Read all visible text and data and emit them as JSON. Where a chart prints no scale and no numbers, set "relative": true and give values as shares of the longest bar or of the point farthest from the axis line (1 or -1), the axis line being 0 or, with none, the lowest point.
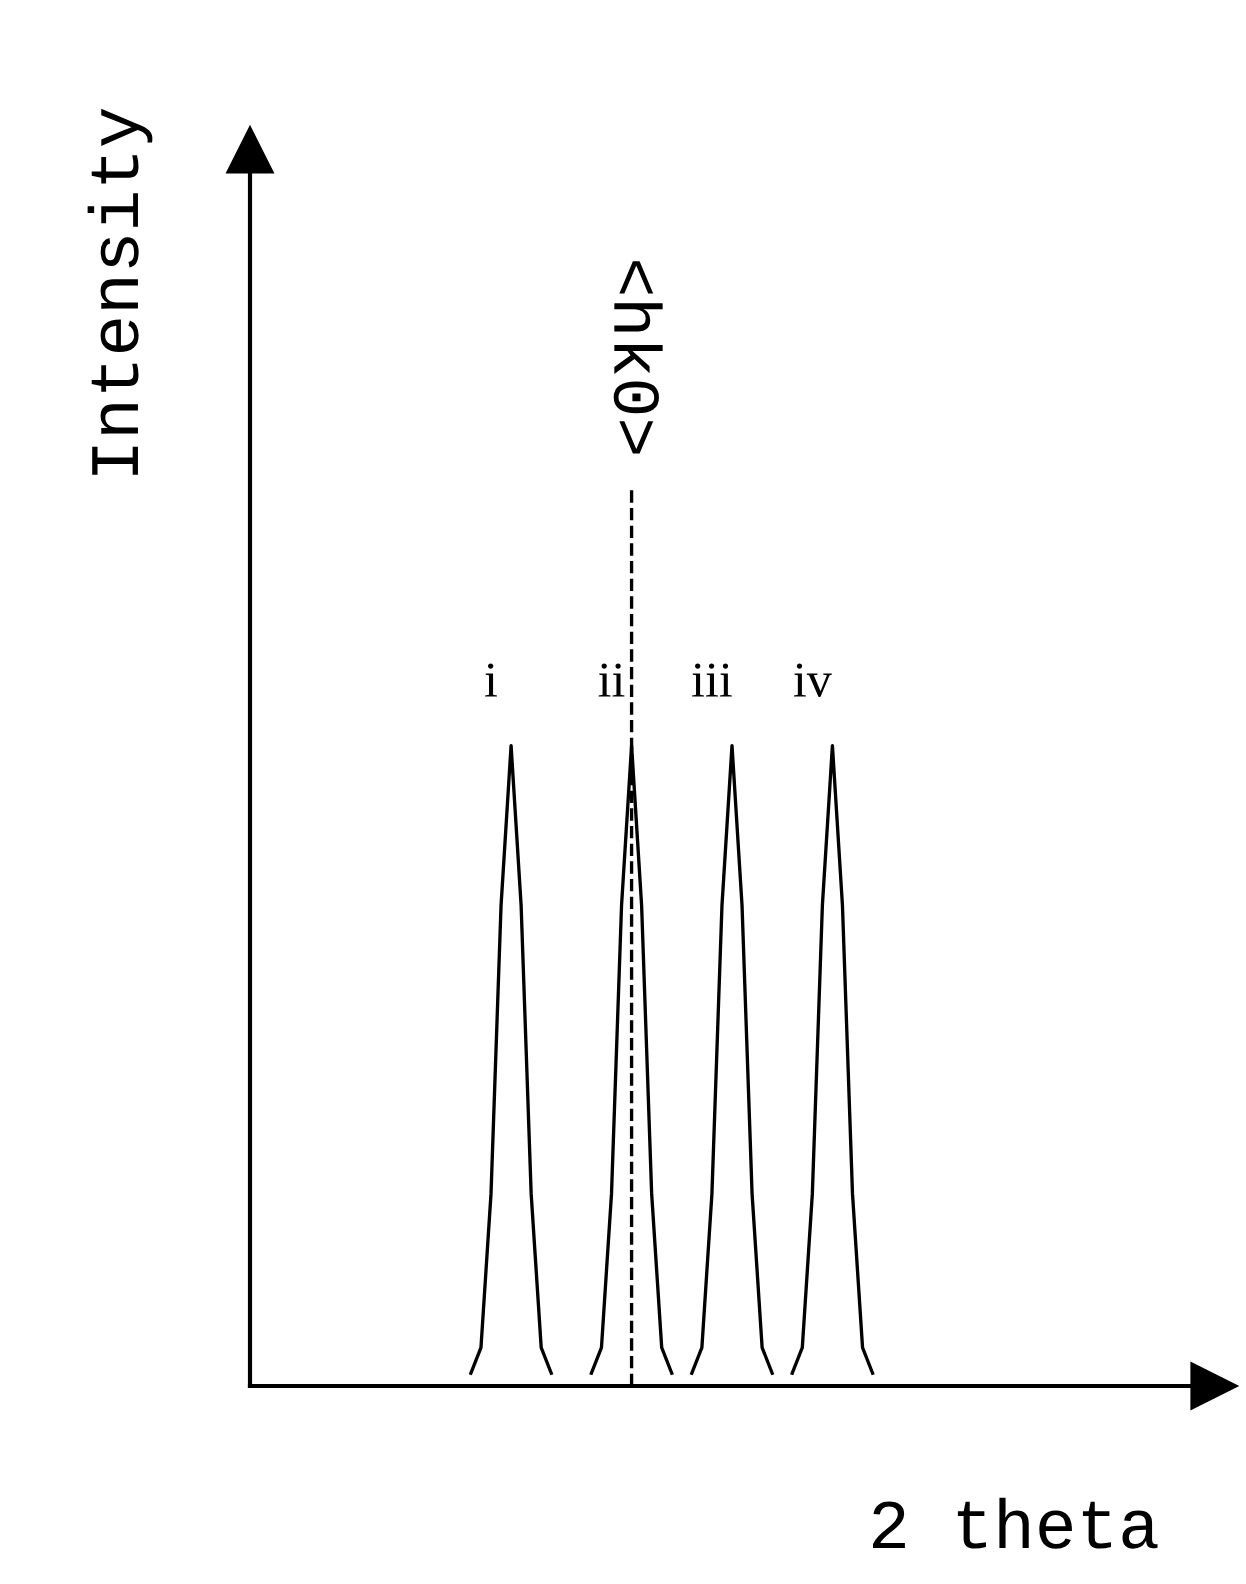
{
  "chart_data": {
    "type": "line",
    "relative": true,
    "xlabel": "2 theta",
    "ylabel": "Intensity",
    "categories": [
      null,
      null,
      null,
      null,
      null,
      null,
      null,
      null,
      null,
      null,
      null,
      null,
      null,
      null,
      null,
      null,
      null,
      null,
      null,
      null,
      null,
      null,
      null,
      null,
      null,
      null,
      null,
      null,
      null,
      null,
      null,
      null,
      null,
      null,
      null,
      null,
      null,
      null,
      null,
      null,
      null,
      null,
      null,
      null,
      null,
      null,
      null,
      null,
      null,
      null,
      null,
      null,
      null,
      null,
      null,
      null,
      null,
      null,
      null,
      null,
      null,
      null,
      null,
      null,
      null,
      null,
      null,
      null,
      null,
      null,
      null,
      null,
      null,
      null,
      null,
      null,
      null,
      null,
      null,
      null,
      null,
      null,
      null,
      null,
      null,
      null,
      null,
      null,
      null,
      null,
      null,
      null,
      null,
      null,
      null,
      null,
      null
    ],
    "series": [
      {
        "name": "i",
        "color": "#000000",
        "values": [
          null,
          null,
          null,
          null,
          null,
          null,
          null,
          null,
          null,
          null,
          null,
          null,
          null,
          null,
          null,
          null,
          null,
          null,
          null,
          null,
          null,
          null,
          0.02,
          0.06,
          0.3,
          0.75,
          1,
          0.75,
          0.3,
          0.06,
          0.02,
          null,
          null,
          null,
          null,
          null,
          null,
          null,
          null,
          null,
          null,
          null,
          null,
          null,
          null,
          null,
          null,
          null,
          null,
          null,
          null,
          null,
          null,
          null,
          null,
          null,
          null,
          null,
          null,
          null,
          null,
          null,
          null,
          null,
          null,
          null,
          null,
          null,
          null,
          null,
          null,
          null,
          null,
          null,
          null,
          null,
          null,
          null,
          null,
          null,
          null,
          null,
          null,
          null,
          null,
          null,
          null,
          null,
          null,
          null,
          null,
          null,
          null,
          null,
          null,
          null,
          null
        ]
      },
      {
        "name": "ii",
        "color": "#000000",
        "values": [
          null,
          null,
          null,
          null,
          null,
          null,
          null,
          null,
          null,
          null,
          null,
          null,
          null,
          null,
          null,
          null,
          null,
          null,
          null,
          null,
          null,
          null,
          null,
          null,
          null,
          null,
          null,
          null,
          null,
          null,
          null,
          null,
          null,
          null,
          0.02,
          0.06,
          0.3,
          0.75,
          1,
          0.75,
          0.3,
          0.06,
          0.02,
          null,
          null,
          null,
          null,
          null,
          null,
          null,
          null,
          null,
          null,
          null,
          null,
          null,
          null,
          null,
          null,
          null,
          null,
          null,
          null,
          null,
          null,
          null,
          null,
          null,
          null,
          null,
          null,
          null,
          null,
          null,
          null,
          null,
          null,
          null,
          null,
          null,
          null,
          null,
          null,
          null,
          null,
          null,
          null,
          null,
          null,
          null,
          null,
          null,
          null,
          null,
          null,
          null,
          null
        ]
      },
      {
        "name": "iii",
        "color": "#000000",
        "values": [
          null,
          null,
          null,
          null,
          null,
          null,
          null,
          null,
          null,
          null,
          null,
          null,
          null,
          null,
          null,
          null,
          null,
          null,
          null,
          null,
          null,
          null,
          null,
          null,
          null,
          null,
          null,
          null,
          null,
          null,
          null,
          null,
          null,
          null,
          null,
          null,
          null,
          null,
          null,
          null,
          null,
          null,
          null,
          null,
          0.02,
          0.06,
          0.3,
          0.75,
          1,
          0.75,
          0.3,
          0.06,
          0.02,
          null,
          null,
          null,
          null,
          null,
          null,
          null,
          null,
          null,
          null,
          null,
          null,
          null,
          null,
          null,
          null,
          null,
          null,
          null,
          null,
          null,
          null,
          null,
          null,
          null,
          null,
          null,
          null,
          null,
          null,
          null,
          null,
          null,
          null,
          null,
          null,
          null,
          null,
          null,
          null,
          null,
          null,
          null,
          null
        ]
      },
      {
        "name": "iv",
        "color": "#000000",
        "values": [
          null,
          null,
          null,
          null,
          null,
          null,
          null,
          null,
          null,
          null,
          null,
          null,
          null,
          null,
          null,
          null,
          null,
          null,
          null,
          null,
          null,
          null,
          null,
          null,
          null,
          null,
          null,
          null,
          null,
          null,
          null,
          null,
          null,
          null,
          null,
          null,
          null,
          null,
          null,
          null,
          null,
          null,
          null,
          null,
          null,
          null,
          null,
          null,
          null,
          null,
          null,
          null,
          null,
          null,
          0.02,
          0.06,
          0.3,
          0.75,
          1,
          0.75,
          0.3,
          0.06,
          0.02,
          null,
          null,
          null,
          null,
          null,
          null,
          null,
          null,
          null,
          null,
          null,
          null,
          null,
          null,
          null,
          null,
          null,
          null,
          null,
          null,
          null,
          null,
          null,
          null,
          null,
          null,
          null,
          null,
          null,
          null,
          null,
          null,
          null,
          null
        ]
      }
    ],
    "annotations": [
      "<hk0>"
    ]
  }
}
